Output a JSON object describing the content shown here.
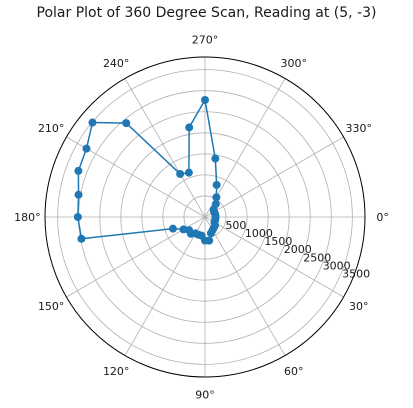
{
  "chart_data": {
    "type": "scatter",
    "title": "Polar Plot of 360 Degree Scan, Reading at (5, -3)",
    "projection": "polar",
    "angular_direction": "clockwise",
    "zero_location": "right",
    "angle_unit": "°",
    "angular_ticks": [
      0,
      30,
      60,
      90,
      120,
      150,
      180,
      210,
      240,
      270,
      300,
      330
    ],
    "radial_ticks": [
      500,
      1000,
      1500,
      2000,
      2500,
      3000,
      3500
    ],
    "rlim": [
      0,
      3800
    ],
    "grid": true,
    "series": [
      {
        "color": "#1f77b4",
        "marker": "circle",
        "line": true,
        "points": [
          {
            "theta": 0,
            "r": 250
          },
          {
            "theta": 10,
            "r": 250
          },
          {
            "theta": 20,
            "r": 250
          },
          {
            "theta": 30,
            "r": 260
          },
          {
            "theta": 40,
            "r": 310
          },
          {
            "theta": 50,
            "r": 330
          },
          {
            "theta": 60,
            "r": 360
          },
          {
            "theta": 70,
            "r": 410
          },
          {
            "theta": 80,
            "r": 570
          },
          {
            "theta": 90,
            "r": 560
          },
          {
            "theta": 100,
            "r": 450
          },
          {
            "theta": 110,
            "r": 450
          },
          {
            "theta": 120,
            "r": 450
          },
          {
            "theta": 130,
            "r": 520
          },
          {
            "theta": 140,
            "r": 490
          },
          {
            "theta": 150,
            "r": 590
          },
          {
            "theta": 160,
            "r": 810
          },
          {
            "theta": 170,
            "r": 2980
          },
          {
            "theta": 180,
            "r": 3020
          },
          {
            "theta": 190,
            "r": 3050
          },
          {
            "theta": 200,
            "r": 3200
          },
          {
            "theta": 210,
            "r": 3250
          },
          {
            "theta": 220,
            "r": 3490
          },
          {
            "theta": 230,
            "r": 2910
          },
          {
            "theta": 240,
            "r": 1180
          },
          {
            "theta": 250,
            "r": 1120
          },
          {
            "theta": 260,
            "r": 2160
          },
          {
            "theta": 270,
            "r": 2780
          },
          {
            "theta": 280,
            "r": 1410
          },
          {
            "theta": 290,
            "r": 810
          },
          {
            "theta": 300,
            "r": 540
          },
          {
            "theta": 310,
            "r": 400
          },
          {
            "theta": 320,
            "r": 270
          },
          {
            "theta": 330,
            "r": 250
          },
          {
            "theta": 340,
            "r": 250
          },
          {
            "theta": 350,
            "r": 250
          }
        ]
      }
    ]
  }
}
